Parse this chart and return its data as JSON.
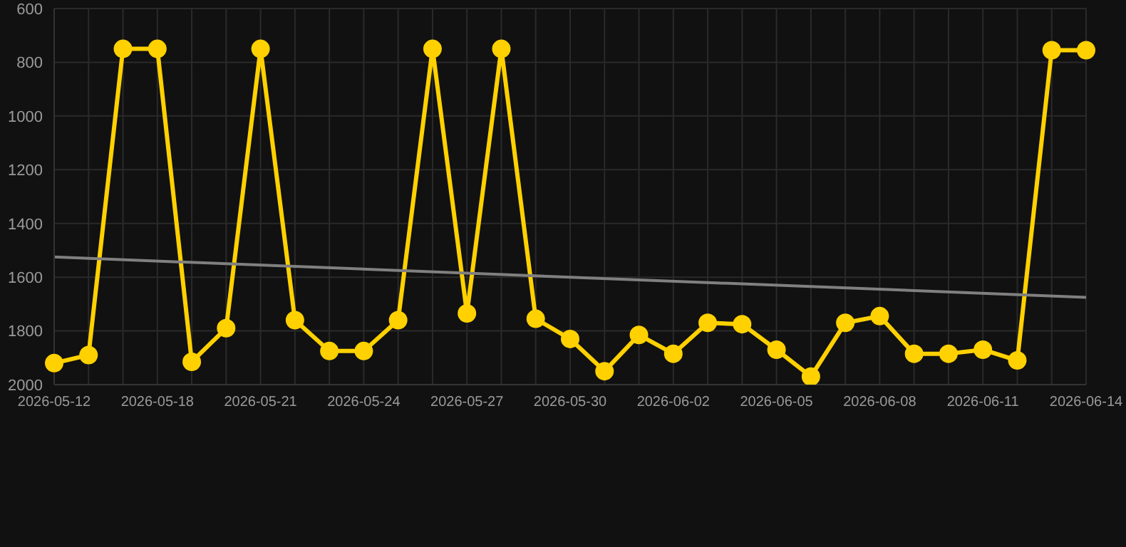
{
  "chart_data": {
    "type": "line",
    "categories": [
      "2026-05-12",
      null,
      null,
      "2026-05-18",
      null,
      null,
      "2026-05-21",
      null,
      null,
      "2026-05-24",
      null,
      null,
      "2026-05-27",
      null,
      null,
      "2026-05-30",
      null,
      null,
      "2026-06-02",
      null,
      null,
      "2026-06-05",
      null,
      null,
      "2026-06-08",
      null,
      null,
      "2026-06-11",
      null,
      null,
      "2026-06-14"
    ],
    "series": [
      {
        "color": "#ffd100",
        "marker": "circle",
        "values": [
          1920,
          1890,
          750,
          750,
          1915,
          1790,
          750,
          1760,
          1875,
          1875,
          1760,
          750,
          1735,
          750,
          1755,
          1830,
          1950,
          1815,
          1885,
          1770,
          1775,
          1870,
          1970,
          1770,
          1745,
          1885,
          1885,
          1870,
          1910,
          755,
          755
        ]
      },
      {
        "color": "#808080",
        "marker": "none",
        "values": [
          1525,
          null,
          null,
          null,
          null,
          null,
          null,
          null,
          null,
          null,
          null,
          null,
          null,
          null,
          null,
          null,
          null,
          null,
          null,
          null,
          null,
          null,
          null,
          null,
          null,
          null,
          null,
          null,
          null,
          null,
          1675
        ]
      }
    ],
    "ylim": [
      2000,
      600
    ],
    "yticks": [
      600,
      800,
      1000,
      1200,
      1400,
      1600,
      1800,
      2000
    ],
    "grid": true,
    "legend": false
  }
}
